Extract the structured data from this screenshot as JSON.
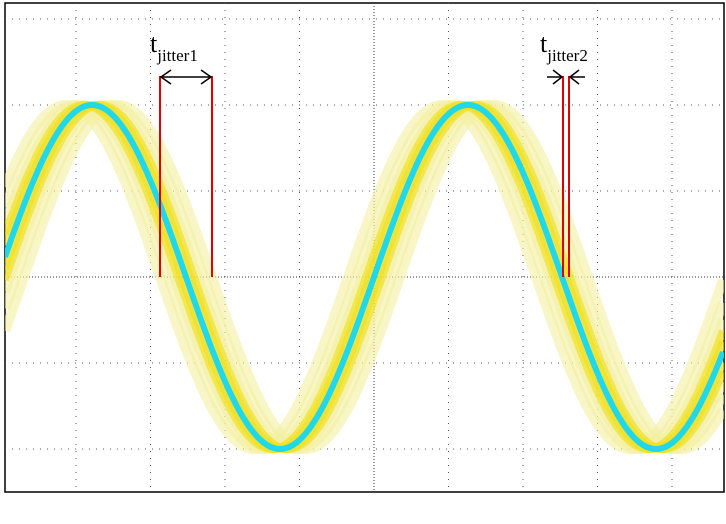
{
  "labels": [
    {
      "main": "t",
      "sub": "jitter1"
    },
    {
      "main": "t",
      "sub": "jitter2"
    }
  ]
}
